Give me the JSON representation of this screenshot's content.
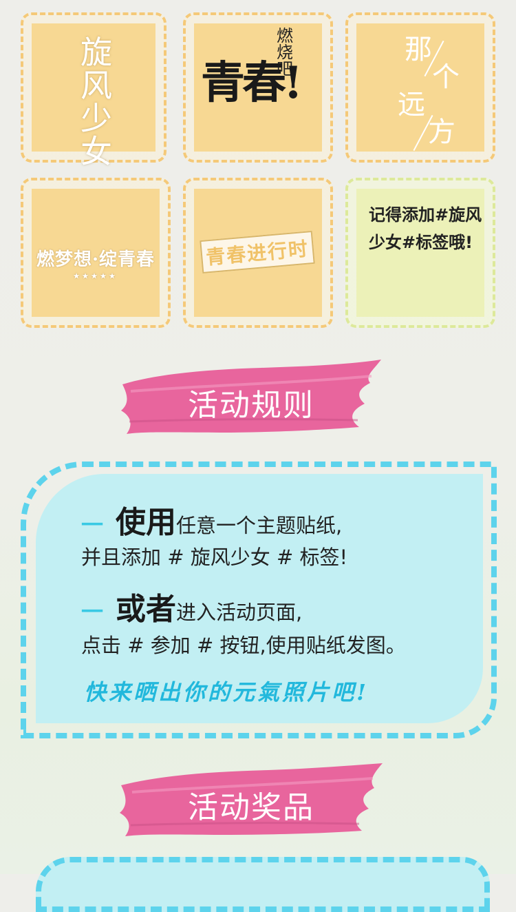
{
  "stickers": [
    {
      "label": "旋风少女"
    },
    {
      "label_small": "燃烧吧",
      "label_big": "青春!"
    },
    {
      "words": [
        "那",
        "个",
        "远",
        "方"
      ]
    },
    {
      "label": "燃梦想·绽青春",
      "stars": "★★★★★"
    },
    {
      "label": "青春进行时"
    },
    {
      "tip": "记得添加#旋风少女#标签哦!"
    }
  ],
  "sections": {
    "rules_title": "活动规则",
    "prizes_title": "活动奖品"
  },
  "rules": {
    "line1_dash": "一",
    "line1_big": "使用",
    "line1_rest": "任意一个主题贴纸,",
    "line2": "并且添加 # 旋风少女 # 标签!",
    "line3_dash": "一",
    "line3_big": "或者",
    "line3_rest": "进入活动页面,",
    "line4": "点击 # 参加 # 按钮,使用贴纸发图。",
    "cta": "快来晒出你的元氣照片吧!"
  },
  "colors": {
    "tile_border": "#f5c978",
    "tile_fill": "#f7d893",
    "tip_fill": "#ecf1b8",
    "banner_pink": "#e8659d",
    "card_fill": "#c2eff3",
    "card_border": "#5dd3ec"
  }
}
